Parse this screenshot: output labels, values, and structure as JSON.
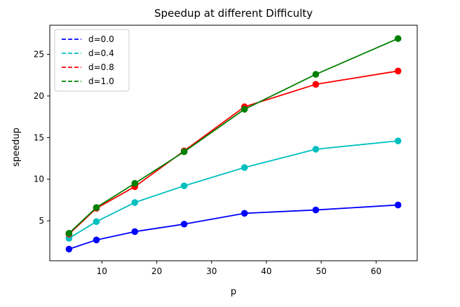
{
  "chart_data": {
    "type": "line",
    "title": "Speedup at different Difficulty",
    "xlabel": "p",
    "ylabel": "speedup",
    "x": [
      4,
      9,
      16,
      25,
      36,
      49,
      64
    ],
    "xlim": [
      0.5,
      67.5
    ],
    "ylim": [
      0.2,
      28.5
    ],
    "xticks": [
      10,
      20,
      30,
      40,
      50,
      60
    ],
    "yticks": [
      5,
      10,
      15,
      20,
      25
    ],
    "grid": false,
    "legend_position": "top-left",
    "series": [
      {
        "name": "d=0.0",
        "color": "#0000ff",
        "values": [
          1.6,
          2.7,
          3.7,
          4.6,
          5.9,
          6.3,
          6.9
        ]
      },
      {
        "name": "d=0.4",
        "color": "#00bfbf",
        "values": [
          2.9,
          4.9,
          7.2,
          9.2,
          11.4,
          13.6,
          14.6
        ]
      },
      {
        "name": "d=0.8",
        "color": "#ff0000",
        "values": [
          3.4,
          6.5,
          9.1,
          13.4,
          18.7,
          21.4,
          23.0
        ]
      },
      {
        "name": "d=1.0",
        "color": "#008000",
        "values": [
          3.5,
          6.6,
          9.5,
          13.3,
          18.4,
          22.6,
          26.9
        ]
      }
    ]
  }
}
